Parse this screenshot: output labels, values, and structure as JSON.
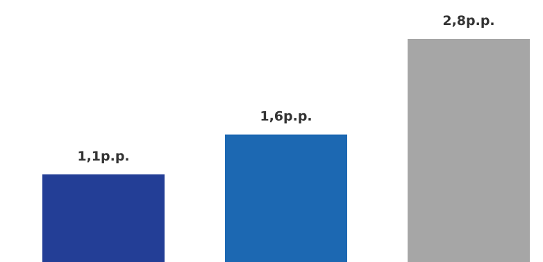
{
  "chart_data": {
    "type": "bar",
    "categories": [
      "",
      "",
      ""
    ],
    "values": [
      1.1,
      1.6,
      2.8
    ],
    "data_labels": [
      "1,1p.p.",
      "1,6p.p.",
      "2,8p.p."
    ],
    "colors": [
      "#233e96",
      "#1c68b2",
      "#a6a6a6"
    ],
    "title": "",
    "xlabel": "",
    "ylabel": "",
    "ylim": [
      0,
      2.8
    ],
    "grid": false,
    "legend": "none",
    "units": "p.p."
  }
}
